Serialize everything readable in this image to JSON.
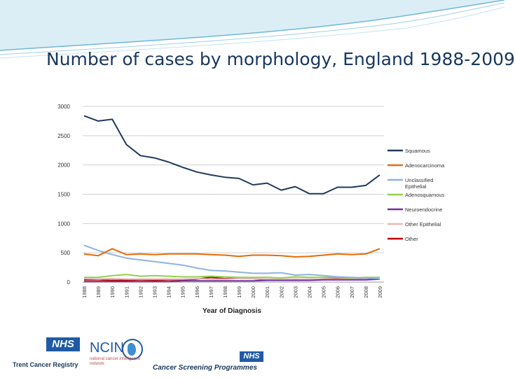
{
  "slide": {
    "title": "Number of cases by morphology, England 1988-2009"
  },
  "logos": {
    "nhs": "NHS",
    "trent": "Trent Cancer Registry",
    "ncin": "NCIN",
    "ncin_sub": "national cancer intelligence network",
    "screening": "Cancer Screening Programmes"
  },
  "chart_data": {
    "type": "line",
    "xlabel": "Year of Diagnosis",
    "ylabel": "",
    "ylim": [
      0,
      3000
    ],
    "yticks": [
      0,
      500,
      1000,
      1500,
      2000,
      2500,
      3000
    ],
    "grid": true,
    "legend_position": "right",
    "x": [
      "1988",
      "1989",
      "1990",
      "1991",
      "1992",
      "1993",
      "1994",
      "1995",
      "1996",
      "1997",
      "1998",
      "1999",
      "2000",
      "2001",
      "2002",
      "2003",
      "2004",
      "2005",
      "2006",
      "2007",
      "2008",
      "2009"
    ],
    "series": [
      {
        "name": "Squamous",
        "color": "#1f3a5f",
        "values": [
          2840,
          2750,
          2780,
          2350,
          2160,
          2120,
          2050,
          1960,
          1880,
          1830,
          1790,
          1770,
          1660,
          1690,
          1570,
          1630,
          1510,
          1510,
          1620,
          1620,
          1650,
          1830
        ]
      },
      {
        "name": "Adenocarcinoma",
        "color": "#e46c0a",
        "values": [
          480,
          450,
          570,
          470,
          480,
          470,
          480,
          480,
          480,
          470,
          460,
          440,
          460,
          460,
          450,
          430,
          440,
          460,
          480,
          470,
          480,
          570
        ]
      },
      {
        "name": "Unclassified Epithelial",
        "color": "#8db3e2",
        "values": [
          630,
          540,
          470,
          410,
          380,
          350,
          320,
          290,
          240,
          200,
          190,
          170,
          150,
          150,
          160,
          120,
          130,
          110,
          90,
          80,
          70,
          60
        ]
      },
      {
        "name": "Adenosquamous",
        "color": "#92d050",
        "values": [
          80,
          80,
          110,
          130,
          100,
          110,
          100,
          90,
          90,
          100,
          90,
          80,
          80,
          80,
          70,
          90,
          80,
          80,
          80,
          70,
          80,
          80
        ]
      },
      {
        "name": "Neuroendocrine",
        "color": "#7030a0",
        "values": [
          10,
          10,
          10,
          10,
          10,
          10,
          10,
          20,
          20,
          20,
          20,
          20,
          20,
          30,
          30,
          30,
          30,
          40,
          40,
          40,
          40,
          50
        ]
      },
      {
        "name": "Other Epithelial",
        "color": "#e6b9b8",
        "values": [
          60,
          50,
          60,
          50,
          50,
          50,
          50,
          50,
          60,
          50,
          50,
          60,
          60,
          50,
          50,
          50,
          50,
          50,
          50,
          50,
          50,
          60
        ]
      },
      {
        "name": "Other",
        "color": "#c00000",
        "values": [
          40,
          40,
          30,
          30,
          40,
          30,
          40,
          40,
          50,
          80,
          60,
          70,
          60,
          40,
          40,
          50,
          40,
          50,
          60,
          50,
          60,
          60
        ]
      }
    ]
  }
}
